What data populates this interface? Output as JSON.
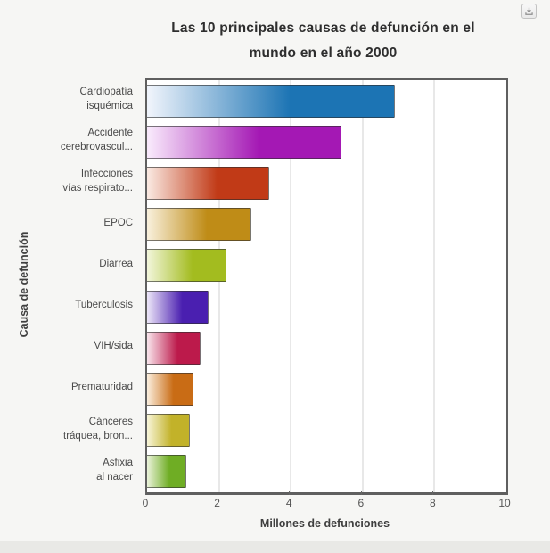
{
  "toolbar": {
    "download_button": "export-download"
  },
  "chart_data": {
    "type": "bar",
    "orientation": "horizontal",
    "title": "Las 10 principales causas de defunción en el mundo en el año 2000",
    "title_lines": [
      "Las 10 principales causas de defunción en el",
      "mundo en el año 2000"
    ],
    "xlabel": "Millones de defunciones",
    "ylabel": "Causa de defunción",
    "xlim": [
      0,
      10
    ],
    "xticks": [
      0,
      2,
      4,
      6,
      8,
      10
    ],
    "grid": true,
    "categories": [
      "Cardiopatía isquémica",
      "Accidente cerebrovascul...",
      "Infecciones vías respirato...",
      "EPOC",
      "Diarrea",
      "Tuberculosis",
      "VIH/sida",
      "Prematuridad",
      "Cánceres tráquea, bron...",
      "Asfixia al nacer"
    ],
    "category_lines": [
      [
        "Cardiopatía",
        "isquémica"
      ],
      [
        "Accidente",
        "cerebrovascul..."
      ],
      [
        "Infecciones",
        "vías respirato..."
      ],
      [
        "EPOC"
      ],
      [
        "Diarrea"
      ],
      [
        "Tuberculosis"
      ],
      [
        "VIH/sida"
      ],
      [
        "Prematuridad"
      ],
      [
        "Cánceres",
        "tráquea, bron..."
      ],
      [
        "Asfixia",
        "al nacer"
      ]
    ],
    "values": [
      6.9,
      5.4,
      3.4,
      2.9,
      2.2,
      1.7,
      1.5,
      1.3,
      1.2,
      1.1
    ],
    "bar_colors": [
      "#1c74b4",
      "#a418b4",
      "#c13a17",
      "#bf8c17",
      "#a3bc1f",
      "#4a1fb0",
      "#bc1a4b",
      "#c96c15",
      "#c2b229",
      "#6fad24"
    ],
    "bar_colors_light": [
      "#eef3fb",
      "#f8e8fb",
      "#f9e7df",
      "#f8efda",
      "#f1f5d8",
      "#eae3f7",
      "#f8e1e9",
      "#faecda",
      "#f7f4d6",
      "#e9f2d8"
    ]
  }
}
